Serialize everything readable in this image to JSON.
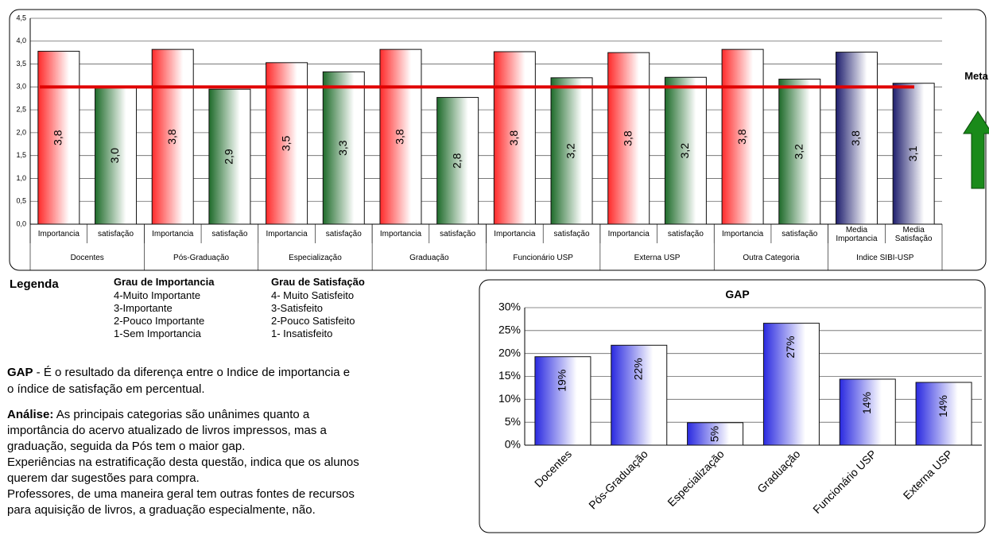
{
  "chart_data": [
    {
      "type": "bar",
      "categories": [
        "Importancia",
        "satisfação",
        "Importancia",
        "satisfação",
        "Importancia",
        "satisfação",
        "Importancia",
        "satisfação",
        "Importancia",
        "satisfação",
        "Importancia",
        "satisfação",
        "Importancia",
        "satisfação",
        "Media Importancia",
        "Media Satisfação"
      ],
      "groups": [
        "Docentes",
        "Pós-Graduação",
        "Especialização",
        "Graduação",
        "Funcionário USP",
        "Externa USP",
        "Outra Categoria",
        "Indice SIBI-USP"
      ],
      "values": [
        3.78,
        3.0,
        3.82,
        2.95,
        3.53,
        3.33,
        3.82,
        2.77,
        3.77,
        3.2,
        3.75,
        3.21,
        3.82,
        3.17,
        3.76,
        3.08
      ],
      "value_labels": [
        "3,8",
        "3,0",
        "3,8",
        "2,9",
        "3,5",
        "3,3",
        "3,8",
        "2,8",
        "3,8",
        "3,2",
        "3,8",
        "3,2",
        "3,8",
        "3,2",
        "3,8",
        "3,1"
      ],
      "colors": [
        "#ff2a2a",
        "#1e6b2a",
        "#ff2a2a",
        "#1e6b2a",
        "#ff2a2a",
        "#1e6b2a",
        "#ff2a2a",
        "#1e6b2a",
        "#ff2a2a",
        "#1e6b2a",
        "#ff2a2a",
        "#1e6b2a",
        "#ff2a2a",
        "#1e6b2a",
        "#1f1f6e",
        "#1f1f6e"
      ],
      "ylim": [
        0,
        4.5
      ],
      "yticks": [
        {
          "value": 0,
          "label": "0,0"
        },
        {
          "value": 0.5,
          "label": "0,5"
        },
        {
          "value": 1,
          "label": "1,0"
        },
        {
          "value": 1.5,
          "label": "1,5"
        },
        {
          "value": 2,
          "label": "2,0"
        },
        {
          "value": 2.5,
          "label": "2,5"
        },
        {
          "value": 3,
          "label": "3,0"
        },
        {
          "value": 3.5,
          "label": "3,5"
        },
        {
          "value": 4,
          "label": "4,0"
        },
        {
          "value": 4.5,
          "label": "4,5"
        }
      ],
      "grid": true,
      "meta": {
        "label": "Meta",
        "value": 3,
        "color": "#e00000"
      }
    },
    {
      "type": "bar",
      "title": "GAP",
      "categories": [
        "Docentes",
        "Pós-Graduação",
        "Especialização",
        "Graduação",
        "Funcionário USP",
        "Externa USP"
      ],
      "values": [
        19.3,
        21.8,
        4.9,
        26.6,
        14.4,
        13.7
      ],
      "value_labels": [
        "19%",
        "22%",
        "5%",
        "27%",
        "14%",
        "14%"
      ],
      "color": "#2a2ae0",
      "ylim": [
        0,
        30
      ],
      "yticks": [
        {
          "value": 0,
          "label": "0%"
        },
        {
          "value": 5,
          "label": "5%"
        },
        {
          "value": 10,
          "label": "10%"
        },
        {
          "value": 15,
          "label": "15%"
        },
        {
          "value": 20,
          "label": "20%"
        },
        {
          "value": 25,
          "label": "25%"
        },
        {
          "value": 30,
          "label": "30%"
        }
      ],
      "grid": true
    }
  ],
  "notes": {
    "legend_title": "Legenda",
    "importance": {
      "title": "Grau de Importancia",
      "items": [
        "4-Muito Importante",
        "3-Importante",
        "2-Pouco Importante",
        "1-Sem Importancia"
      ]
    },
    "satisfaction": {
      "title": "Grau de Satisfação",
      "items": [
        "4- Muito Satisfeito",
        "3-Satisfeito",
        "2-Pouco Satisfeito",
        "1- Insatisfeito"
      ]
    },
    "gap": {
      "term": "GAP",
      "lines": [
        " - É o resultado da diferença entre o Indice de importancia e",
        "o índice de satisfação em percentual."
      ]
    },
    "analysis": {
      "term": "Análise:",
      "lines": [
        " As principais categorias são unânimes quanto a",
        "importância do acervo atualizado de livros  impressos, mas a",
        "graduação, seguida da Pós tem o maior gap.",
        "Experiências  na estratificação desta questão, indica que os alunos",
        "querem dar sugestões para compra.",
        "Professores, de uma maneira geral tem outras fontes de recursos",
        "para aquisição de livros, a graduação especialmente, não."
      ]
    }
  }
}
